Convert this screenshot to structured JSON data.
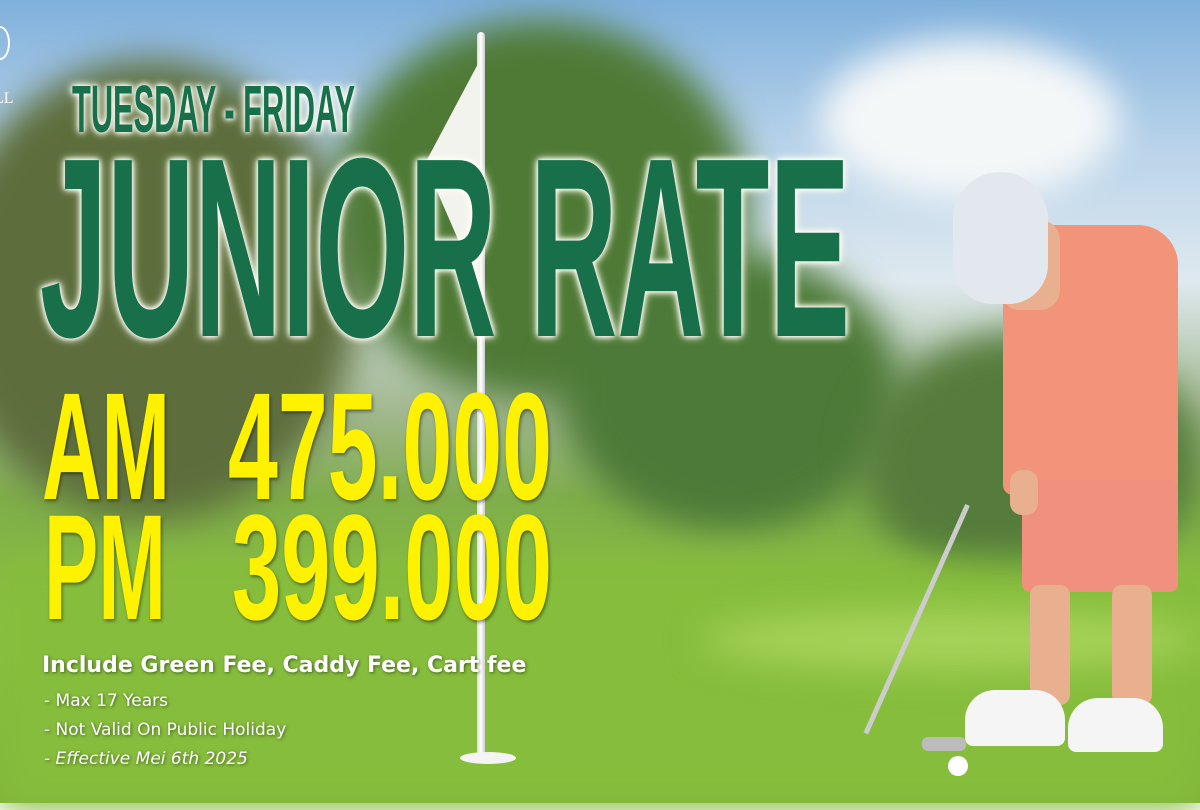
{
  "logo": {
    "text": "LL"
  },
  "headline": {
    "days": "TUESDAY - FRIDAY",
    "title": "JUNIOR RATE"
  },
  "rates": [
    {
      "period": "AM",
      "price": "475.000"
    },
    {
      "period": "PM",
      "price": "399.000"
    }
  ],
  "includes": "Include Green Fee, Caddy Fee, Cart fee",
  "terms": [
    "- Max 17 Years",
    "- Not Valid On Public Holiday",
    "- Effective Mei 6th 2025"
  ],
  "colors": {
    "title": "#17704a",
    "price": "#fff200"
  }
}
